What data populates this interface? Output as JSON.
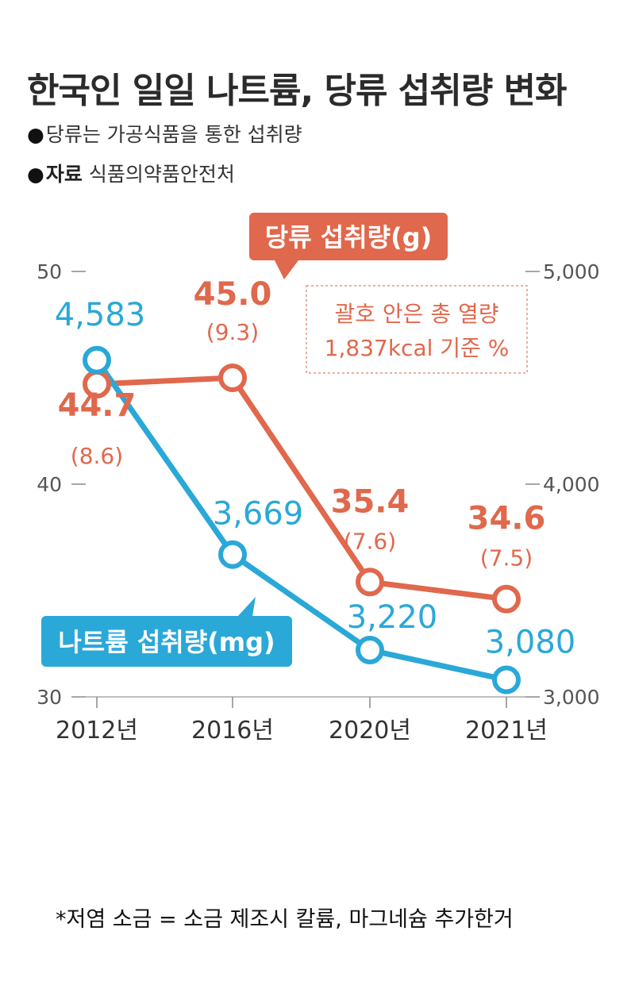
{
  "header": {
    "title": "한국인 일일 나트륨, 당류 섭취량 변화",
    "note1": "당류는 가공식품을 통한 섭취량",
    "source_label": "자료",
    "source": "식품의약품안전처"
  },
  "footnote": "*저염 소금 = 소금 제조시 칼륨, 마그네슘 추가한거",
  "chart_data": {
    "type": "line",
    "categories": [
      "2012년",
      "2016년",
      "2020년",
      "2021년"
    ],
    "series": [
      {
        "name": "당류 섭취량(g)",
        "axis": "left",
        "color": "#e0684c",
        "values": [
          44.7,
          45.0,
          35.4,
          34.6
        ],
        "labels": [
          "44.7",
          "45.0",
          "35.4",
          "34.6"
        ],
        "sublabels": [
          "(8.6)",
          "(9.3)",
          "(7.6)",
          "(7.5)"
        ]
      },
      {
        "name": "나트륨 섭취량(mg)",
        "axis": "right",
        "color": "#2aa8d8",
        "values": [
          4583,
          3669,
          3220,
          3080
        ],
        "labels": [
          "4,583",
          "3,669",
          "3,220",
          "3,080"
        ]
      }
    ],
    "y_left": {
      "range": [
        30,
        50
      ],
      "ticks": [
        "30",
        "40",
        "50"
      ]
    },
    "y_right": {
      "range": [
        3000,
        5000
      ],
      "ticks": [
        "3,000",
        "4,000",
        "5,000"
      ]
    },
    "annotation": [
      "괄호 안은 총 열량",
      "1,837kcal 기준 %"
    ]
  }
}
